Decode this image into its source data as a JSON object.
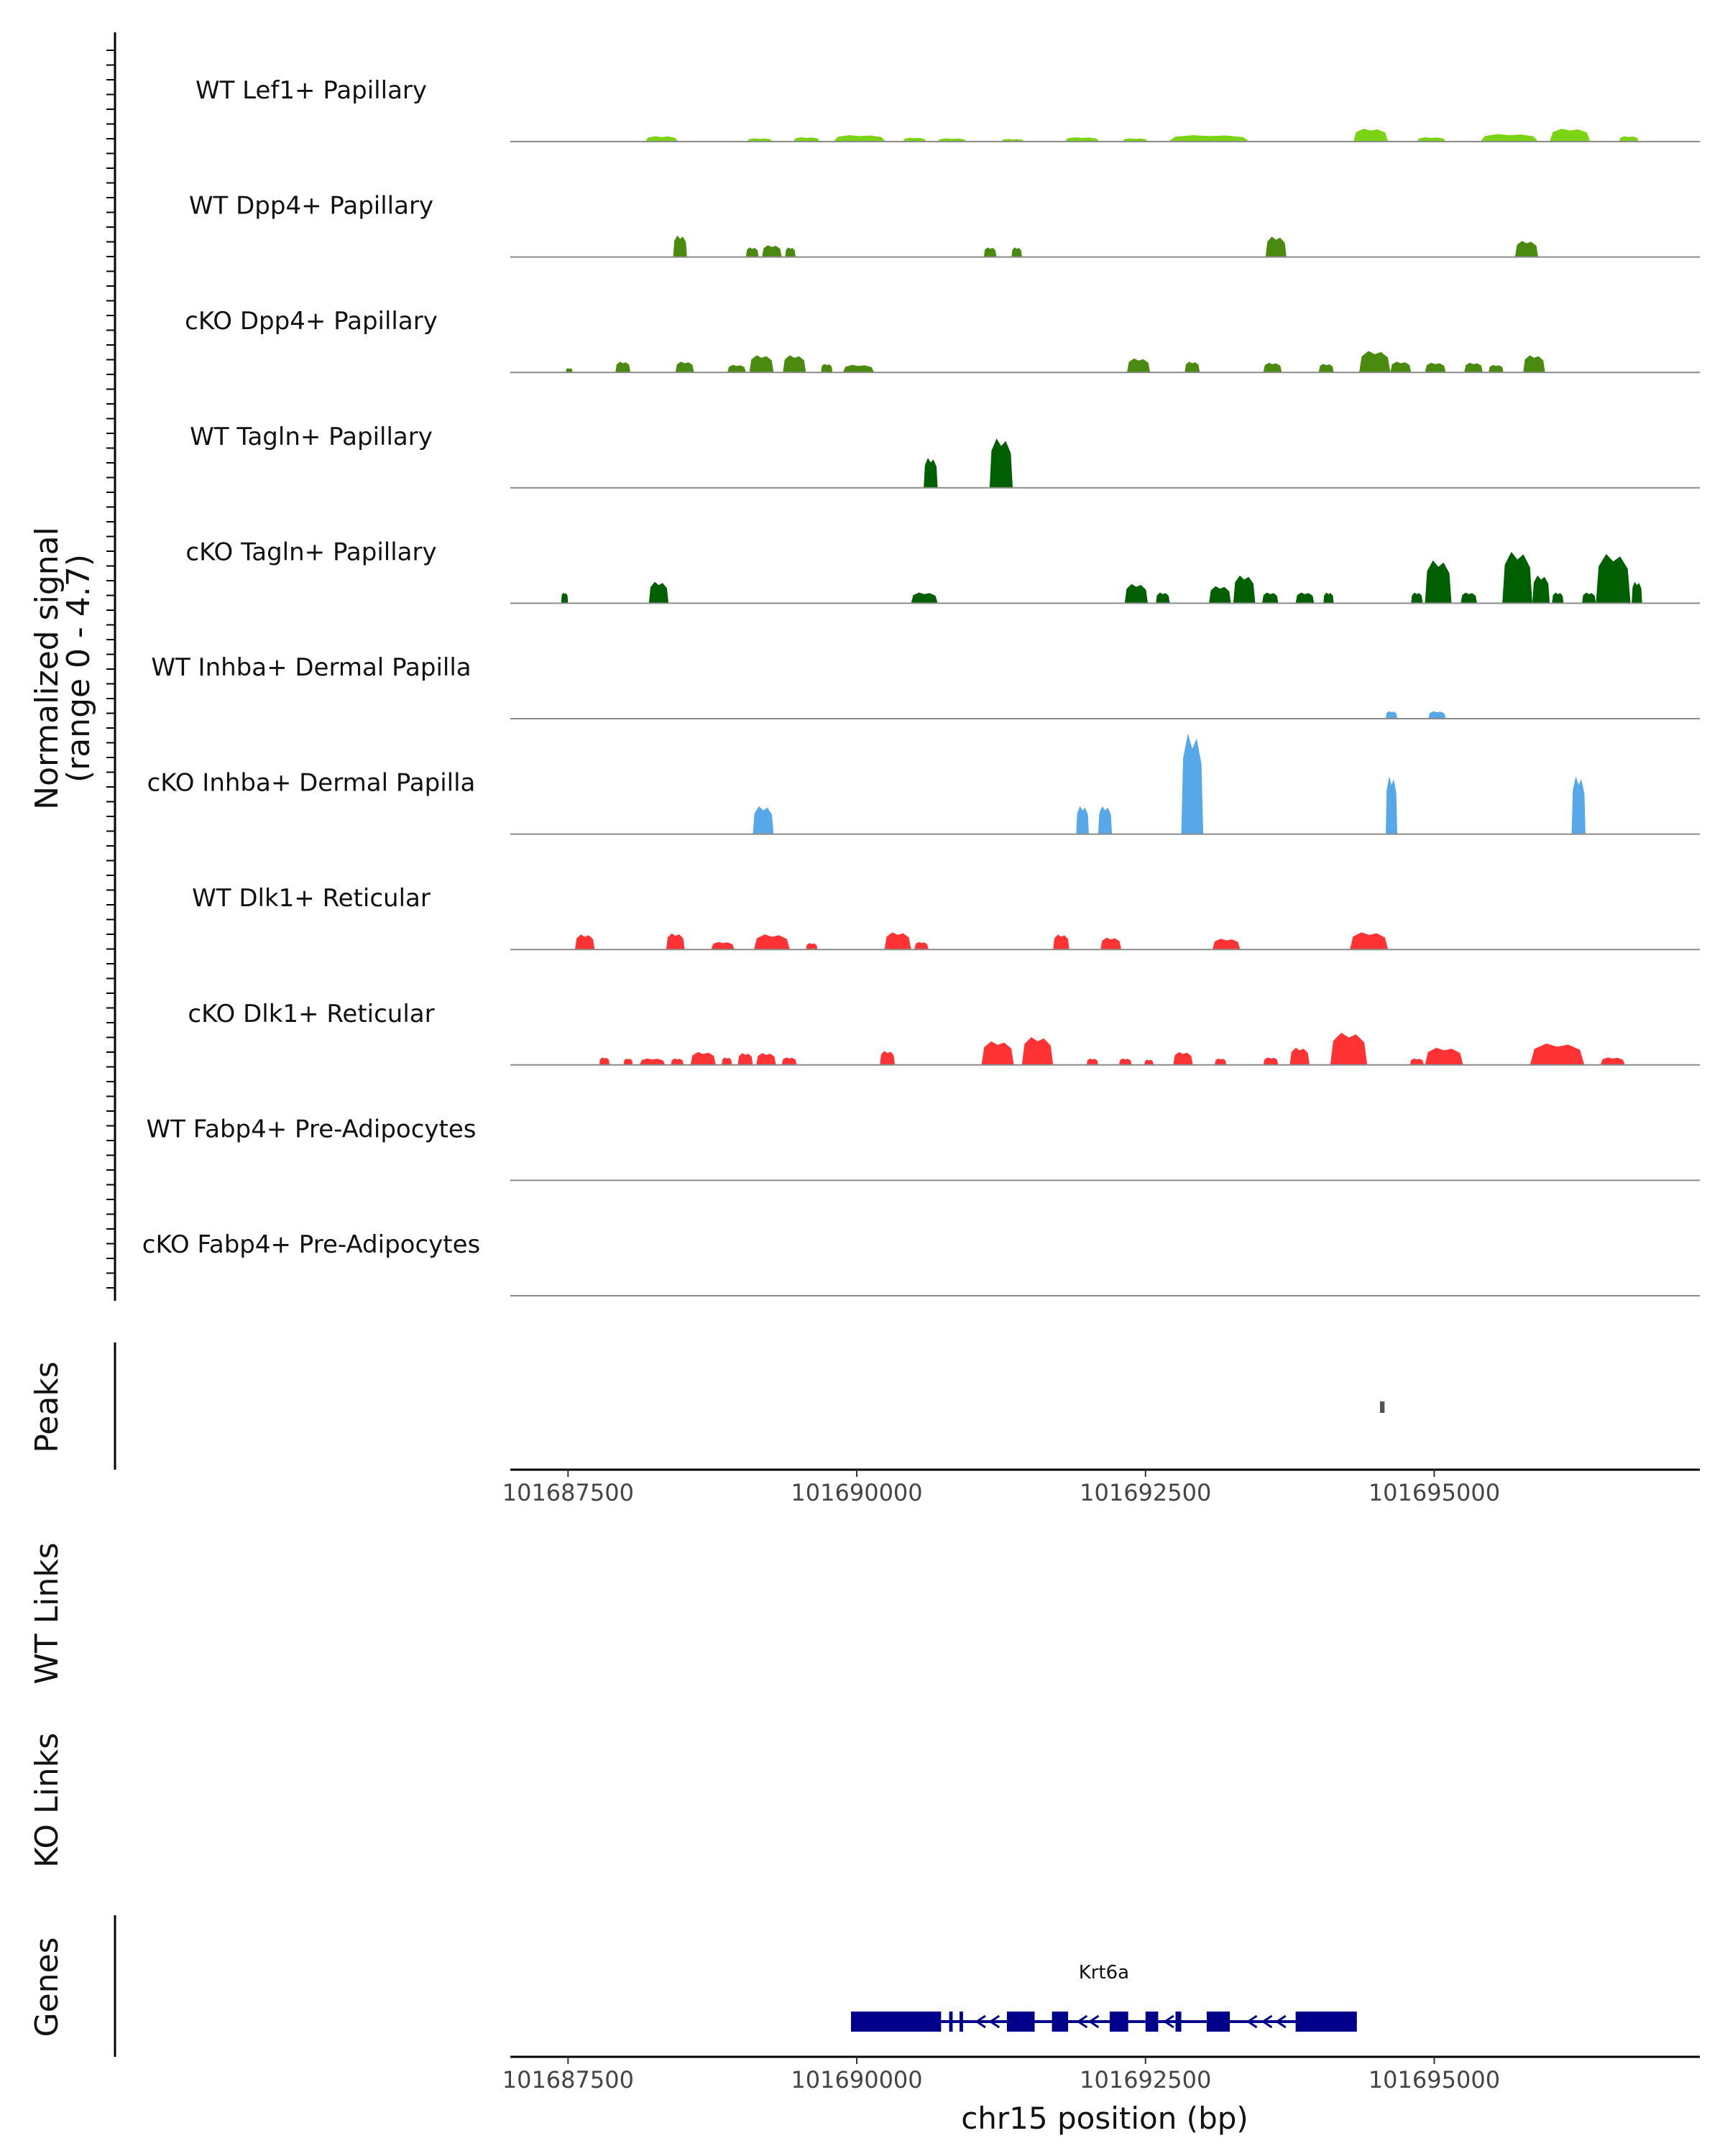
{
  "chart_data": {
    "type": "area",
    "chromosome": "chr15",
    "xlabel": "chr15 position (bp)",
    "xlim": [
      101687000,
      101697300
    ],
    "x_ticks": [
      101687500,
      101690000,
      101692500,
      101695000
    ],
    "x_tick_labels": [
      "101687500",
      "101690000",
      "101692500",
      "101695000"
    ],
    "coverage_ylabel": [
      "Normalized signal",
      "(range 0 - 4.7)"
    ],
    "ylim": [
      0,
      4.7
    ],
    "peaks_label": "Peaks",
    "wt_links_label": "WT Links",
    "ko_links_label": "KO Links",
    "genes_label": "Genes",
    "tracks": [
      {
        "name": "WT Lef1+ Papillary",
        "color": "#7CD313",
        "regions": [
          [
            101688170,
            101688450,
            0.25
          ],
          [
            101689050,
            101689270,
            0.15
          ],
          [
            101689450,
            101689680,
            0.2
          ],
          [
            101689800,
            101690250,
            0.3
          ],
          [
            101690400,
            101690600,
            0.18
          ],
          [
            101690700,
            101690950,
            0.15
          ],
          [
            101691250,
            101691450,
            0.12
          ],
          [
            101691800,
            101692100,
            0.2
          ],
          [
            101692300,
            101692520,
            0.15
          ],
          [
            101692700,
            101693400,
            0.3
          ],
          [
            101694300,
            101694600,
            0.6
          ],
          [
            101694850,
            101695100,
            0.2
          ],
          [
            101695400,
            101695900,
            0.35
          ],
          [
            101696000,
            101696350,
            0.6
          ],
          [
            101696600,
            101696770,
            0.25
          ]
        ]
      },
      {
        "name": "WT Dpp4+ Papillary",
        "color": "#4A8A0E",
        "regions": [
          [
            101688410,
            101688530,
            1.0
          ],
          [
            101689040,
            101689150,
            0.45
          ],
          [
            101689180,
            101689350,
            0.55
          ],
          [
            101689380,
            101689470,
            0.45
          ],
          [
            101691100,
            101691210,
            0.45
          ],
          [
            101691340,
            101691430,
            0.45
          ],
          [
            101693540,
            101693720,
            0.95
          ],
          [
            101695700,
            101695900,
            0.75
          ]
        ]
      },
      {
        "name": "cKO Dpp4+ Papillary",
        "color": "#4A8A0E",
        "regions": [
          [
            101687480,
            101687540,
            0.2
          ],
          [
            101687910,
            101688040,
            0.5
          ],
          [
            101688430,
            101688590,
            0.5
          ],
          [
            101688880,
            101689040,
            0.35
          ],
          [
            101689070,
            101689280,
            0.8
          ],
          [
            101689360,
            101689560,
            0.8
          ],
          [
            101689690,
            101689790,
            0.4
          ],
          [
            101689880,
            101690150,
            0.35
          ],
          [
            101692340,
            101692540,
            0.65
          ],
          [
            101692840,
            101692970,
            0.5
          ],
          [
            101693520,
            101693680,
            0.45
          ],
          [
            101694000,
            101694130,
            0.4
          ],
          [
            101694350,
            101694620,
            1.0
          ],
          [
            101694620,
            101694800,
            0.5
          ],
          [
            101694920,
            101695100,
            0.45
          ],
          [
            101695260,
            101695420,
            0.45
          ],
          [
            101695470,
            101695600,
            0.35
          ],
          [
            101695770,
            101695960,
            0.8
          ]
        ]
      },
      {
        "name": "WT Tagln+ Papillary",
        "color": "#005F00",
        "regions": [
          [
            101690580,
            101690700,
            1.4
          ],
          [
            101691150,
            101691350,
            2.3
          ]
        ]
      },
      {
        "name": "cKO Tagln+ Papillary",
        "color": "#005F00",
        "regions": [
          [
            101687440,
            101687500,
            0.5
          ],
          [
            101688200,
            101688370,
            1.0
          ],
          [
            101690470,
            101690700,
            0.5
          ],
          [
            101692320,
            101692520,
            0.9
          ],
          [
            101692590,
            101692710,
            0.5
          ],
          [
            101693050,
            101693240,
            0.8
          ],
          [
            101693260,
            101693450,
            1.3
          ],
          [
            101693510,
            101693650,
            0.5
          ],
          [
            101693800,
            101693960,
            0.5
          ],
          [
            101694040,
            101694130,
            0.5
          ],
          [
            101694800,
            101694900,
            0.5
          ],
          [
            101694920,
            101695150,
            2.0
          ],
          [
            101695230,
            101695370,
            0.5
          ],
          [
            101695590,
            101695850,
            2.4
          ],
          [
            101695850,
            101696000,
            1.3
          ],
          [
            101696020,
            101696120,
            0.5
          ],
          [
            101696280,
            101696400,
            0.5
          ],
          [
            101696400,
            101696700,
            2.3
          ],
          [
            101696710,
            101696800,
            1.0
          ]
        ]
      },
      {
        "name": "WT Inhba+ Dermal Papilla",
        "color": "#57A8E8",
        "regions": [
          [
            101694580,
            101694680,
            0.35
          ],
          [
            101694950,
            101695100,
            0.35
          ]
        ]
      },
      {
        "name": "cKO Inhba+ Dermal Papilla",
        "color": "#57A8E8",
        "regions": [
          [
            101689100,
            101689280,
            1.3
          ],
          [
            101691900,
            101692010,
            1.3
          ],
          [
            101692090,
            101692210,
            1.3
          ],
          [
            101692810,
            101693000,
            4.7
          ],
          [
            101694580,
            101694680,
            2.7
          ],
          [
            101696190,
            101696310,
            2.7
          ]
        ]
      },
      {
        "name": "WT Dlk1+ Reticular",
        "color": "#FF3333",
        "regions": [
          [
            101687560,
            101687730,
            0.7
          ],
          [
            101688350,
            101688510,
            0.75
          ],
          [
            101688740,
            101688940,
            0.35
          ],
          [
            101689110,
            101689420,
            0.7
          ],
          [
            101689560,
            101689660,
            0.3
          ],
          [
            101690240,
            101690470,
            0.8
          ],
          [
            101690500,
            101690620,
            0.35
          ],
          [
            101691700,
            101691840,
            0.7
          ],
          [
            101692110,
            101692290,
            0.55
          ],
          [
            101693080,
            101693320,
            0.5
          ],
          [
            101694270,
            101694600,
            0.8
          ]
        ]
      },
      {
        "name": "cKO Dlk1+ Reticular",
        "color": "#FF3333",
        "regions": [
          [
            101687770,
            101687860,
            0.35
          ],
          [
            101687980,
            101688060,
            0.3
          ],
          [
            101688120,
            101688340,
            0.3
          ],
          [
            101688390,
            101688500,
            0.3
          ],
          [
            101688560,
            101688780,
            0.6
          ],
          [
            101688830,
            101688920,
            0.35
          ],
          [
            101688970,
            101689100,
            0.55
          ],
          [
            101689130,
            101689300,
            0.55
          ],
          [
            101689350,
            101689480,
            0.35
          ],
          [
            101690200,
            101690330,
            0.65
          ],
          [
            101691080,
            101691360,
            1.1
          ],
          [
            101691430,
            101691700,
            1.3
          ],
          [
            101691990,
            101692090,
            0.3
          ],
          [
            101692270,
            101692380,
            0.3
          ],
          [
            101692490,
            101692570,
            0.25
          ],
          [
            101692740,
            101692910,
            0.6
          ],
          [
            101693100,
            101693200,
            0.3
          ],
          [
            101693520,
            101693650,
            0.35
          ],
          [
            101693750,
            101693920,
            0.8
          ],
          [
            101694100,
            101694420,
            1.5
          ],
          [
            101694790,
            101694910,
            0.3
          ],
          [
            101694920,
            101695250,
            0.8
          ],
          [
            101695830,
            101696300,
            1.0
          ],
          [
            101696440,
            101696650,
            0.35
          ]
        ]
      },
      {
        "name": "WT Fabp4+ Pre-Adipocytes",
        "color": "#E69F00",
        "regions": []
      },
      {
        "name": "cKO Fabp4+ Pre-Adipocytes",
        "color": "#E69F00",
        "regions": []
      }
    ],
    "peaks": [
      [
        101694530,
        101694570
      ]
    ],
    "gene": {
      "name": "Krt6a",
      "color": "#00008B",
      "strand": "-",
      "start": 101689950,
      "end": 101694330,
      "exons": [
        [
          101689950,
          101690730
        ],
        [
          101690800,
          101690830
        ],
        [
          101690890,
          101690920
        ],
        [
          101691300,
          101691540
        ],
        [
          101691690,
          101691830
        ],
        [
          101692190,
          101692350
        ],
        [
          101692500,
          101692610
        ],
        [
          101692760,
          101692810
        ],
        [
          101693030,
          101693230
        ],
        [
          101693800,
          101694330
        ]
      ],
      "arrows": [
        101691070,
        101691190,
        101691950,
        101692050,
        101692700,
        101693420,
        101693550,
        101693670
      ]
    }
  }
}
